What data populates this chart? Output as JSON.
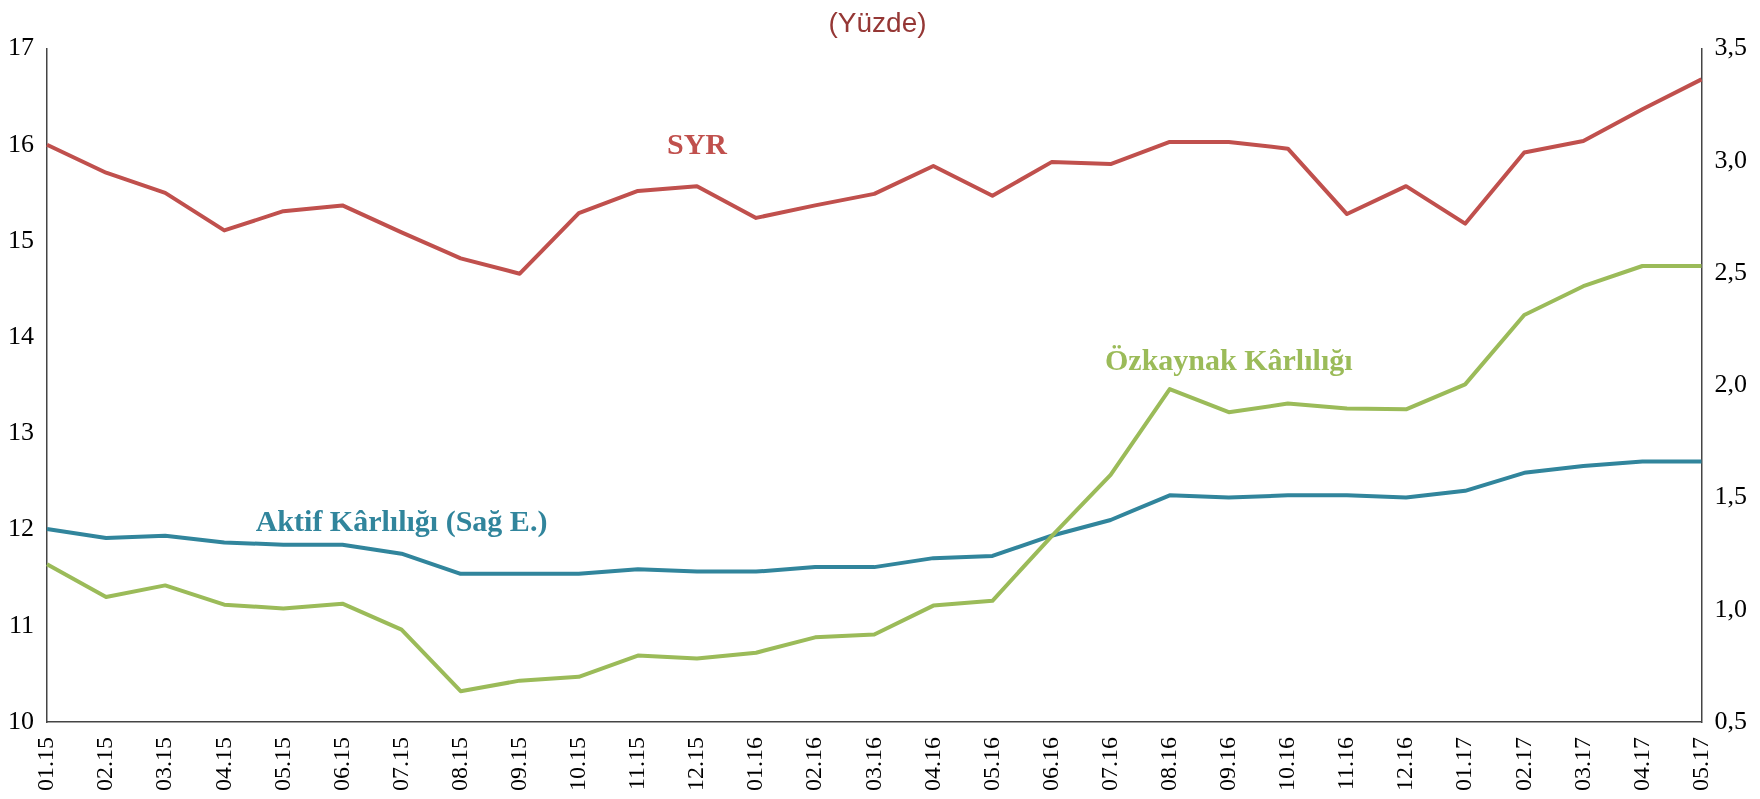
{
  "chart_data": {
    "type": "line",
    "title": "(Yüzde)",
    "categories": [
      "01.15",
      "02.15",
      "03.15",
      "04.15",
      "05.15",
      "06.15",
      "07.15",
      "08.15",
      "09.15",
      "10.15",
      "11.15",
      "12.15",
      "01.16",
      "02.16",
      "03.16",
      "04.16",
      "05.16",
      "06.16",
      "07.16",
      "08.16",
      "09.16",
      "10.16",
      "11.16",
      "12.16",
      "01.17",
      "02.17",
      "03.17",
      "04.17",
      "05.17"
    ],
    "series": [
      {
        "name": "SYR",
        "color": "#c0504d",
        "values": [
          16.0,
          15.71,
          15.5,
          15.11,
          15.31,
          15.37,
          15.09,
          14.82,
          14.66,
          15.29,
          15.52,
          15.57,
          15.24,
          15.37,
          15.49,
          15.78,
          15.47,
          15.82,
          15.8,
          16.03,
          16.03,
          15.96,
          15.28,
          15.57,
          15.18,
          15.92,
          16.04,
          16.37,
          16.68
        ]
      },
      {
        "name": "Özkaynak Kârlılığı",
        "color": "#9bbb59",
        "values": [
          11.64,
          11.3,
          11.42,
          11.22,
          11.18,
          11.23,
          10.96,
          10.32,
          10.43,
          10.47,
          10.69,
          10.66,
          10.72,
          10.88,
          10.91,
          11.21,
          11.26,
          11.93,
          12.57,
          13.46,
          13.22,
          13.31,
          13.26,
          13.25,
          13.51,
          14.23,
          14.53,
          14.74,
          14.74
        ]
      },
      {
        "name": "Aktif Kârlılığı (Sağ E.)",
        "color": "#31859c",
        "axis": "y2",
        "values": [
          1.36,
          1.32,
          1.33,
          1.3,
          1.29,
          1.29,
          1.25,
          1.16,
          1.16,
          1.16,
          1.18,
          1.17,
          1.17,
          1.19,
          1.19,
          1.23,
          1.24,
          1.33,
          1.4,
          1.51,
          1.5,
          1.51,
          1.51,
          1.5,
          1.53,
          1.61,
          1.64,
          1.66,
          1.66
        ]
      }
    ],
    "ylim": [
      10,
      17
    ],
    "yticks": [
      10,
      11,
      12,
      13,
      14,
      15,
      16,
      17
    ],
    "y2lim": [
      0.5,
      3.5
    ],
    "y2ticks": [
      {
        "value": 0.5,
        "label": "0,5"
      },
      {
        "value": 1,
        "label": "1,0"
      },
      {
        "value": 1.5,
        "label": "1,5"
      },
      {
        "value": 2,
        "label": "2,0"
      },
      {
        "value": 2.5,
        "label": "2,5"
      },
      {
        "value": 3,
        "label": "3,0"
      },
      {
        "value": 3.5,
        "label": "3,5"
      }
    ],
    "grid": false,
    "legend": false,
    "marker": "none",
    "line_style": "solid"
  }
}
